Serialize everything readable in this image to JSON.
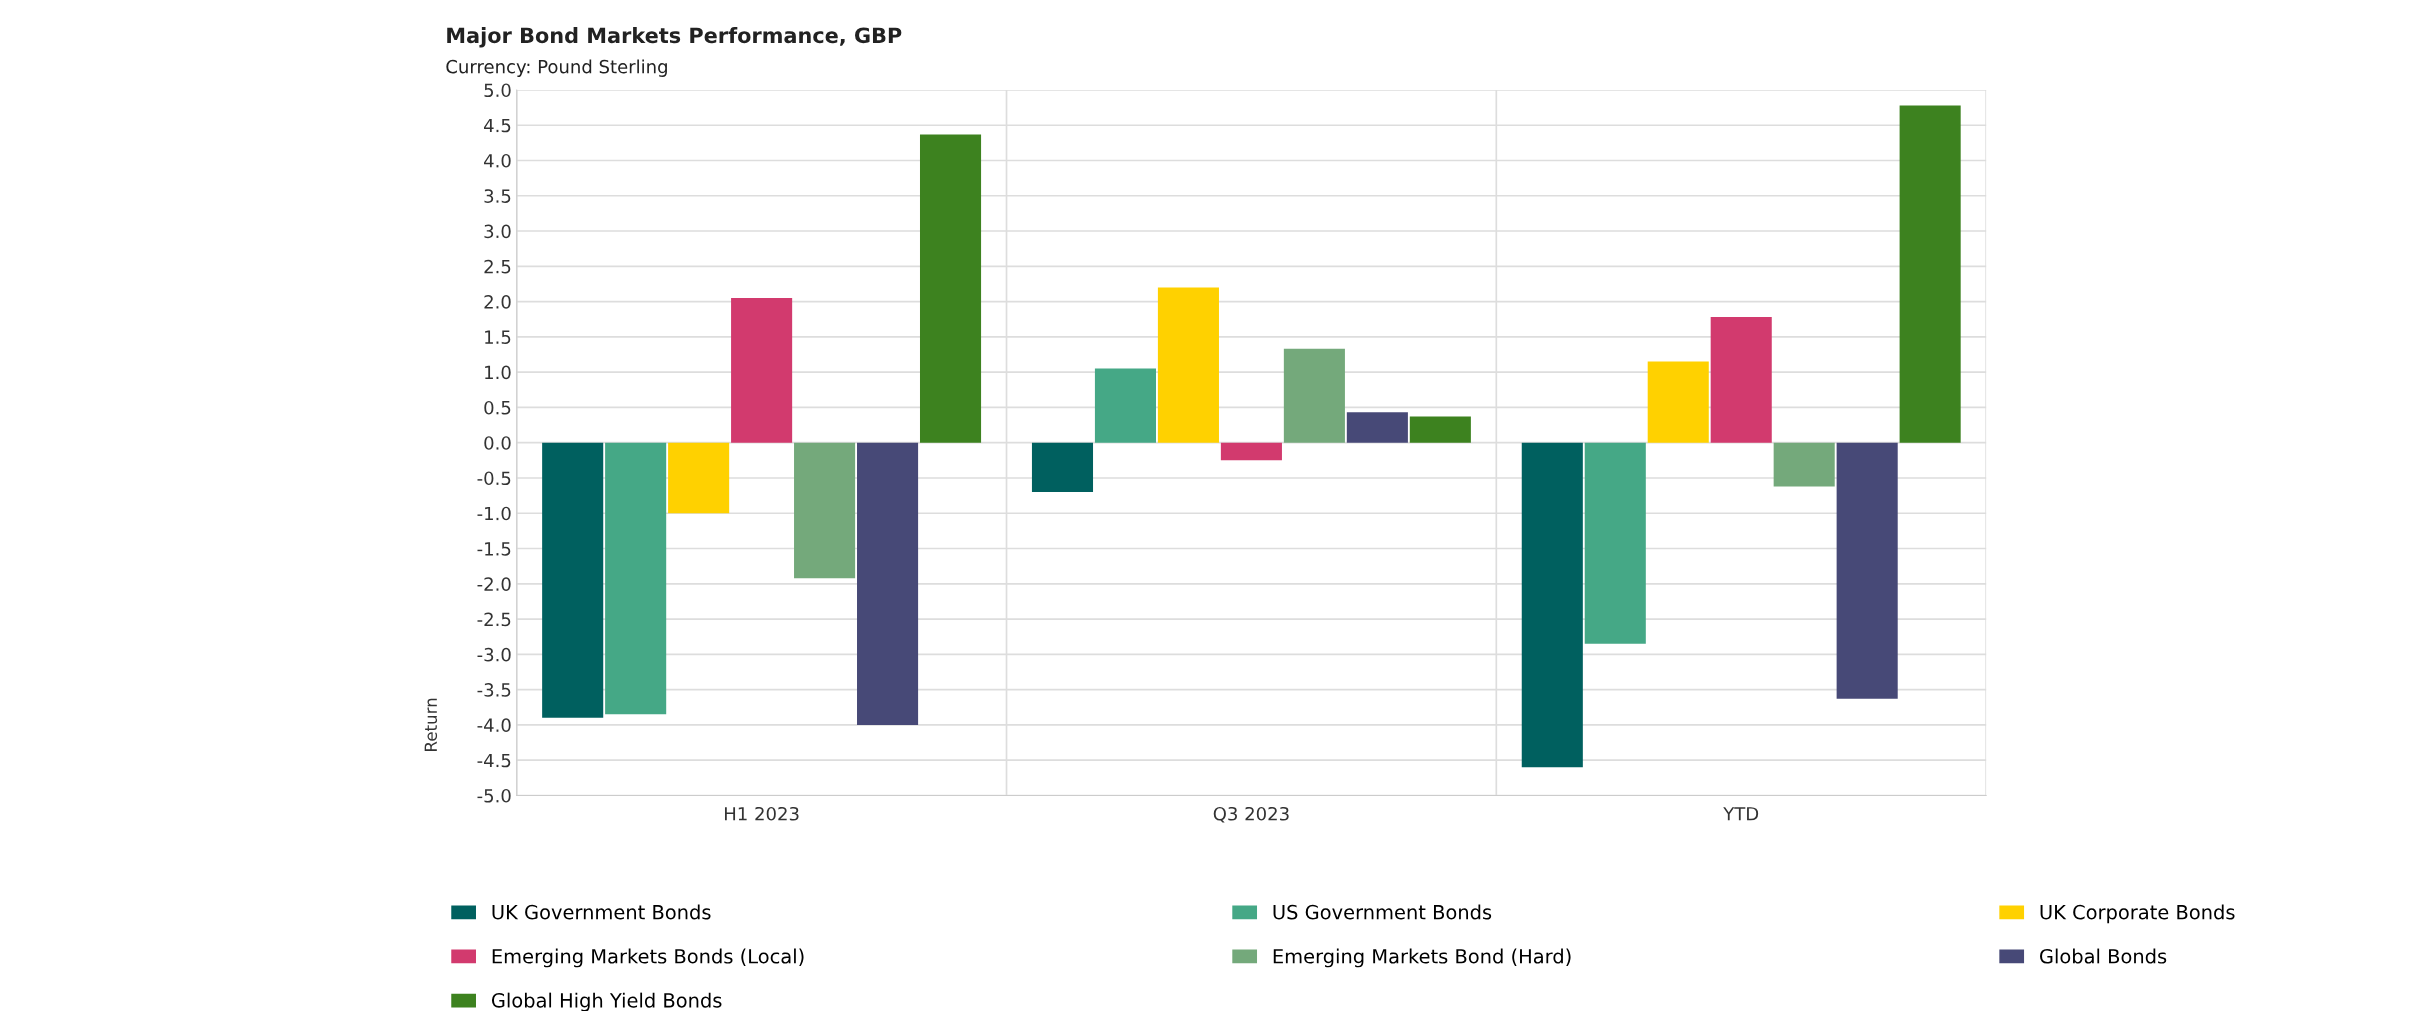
{
  "chart_data": {
    "type": "bar",
    "title": "Major Bond Markets Performance, GBP",
    "subtitle": "Currency: Pound Sterling",
    "ylabel": "Return",
    "categories": [
      "H1 2023",
      "Q3 2023",
      "YTD"
    ],
    "series": [
      {
        "name": "UK Government Bonds",
        "color": "#00605f",
        "values": [
          -3.9,
          -0.7,
          -4.6
        ]
      },
      {
        "name": "US Government Bonds",
        "color": "#45a886",
        "values": [
          -3.85,
          1.05,
          -2.85
        ]
      },
      {
        "name": "UK Corporate Bonds",
        "color": "#ffd100",
        "values": [
          -1.0,
          2.2,
          1.15
        ]
      },
      {
        "name": "Emerging Markets Bonds (Local)",
        "color": "#d23a6e",
        "values": [
          2.05,
          -0.25,
          1.78
        ]
      },
      {
        "name": "Emerging Markets Bond (Hard)",
        "color": "#74a97b",
        "values": [
          -1.92,
          1.33,
          -0.62
        ]
      },
      {
        "name": "Global Bonds",
        "color": "#474977",
        "values": [
          -4.0,
          0.43,
          -3.63
        ]
      },
      {
        "name": "Global High Yield Bonds",
        "color": "#3d821f",
        "values": [
          4.37,
          0.37,
          4.78
        ]
      }
    ],
    "ylim": [
      -5.0,
      5.0
    ],
    "yticks": [
      {
        "value": -5,
        "label": "-5.0"
      },
      {
        "value": -4.5,
        "label": "-4.5"
      },
      {
        "value": -4,
        "label": "-4.0"
      },
      {
        "value": -3.5,
        "label": "-3.5"
      },
      {
        "value": -3,
        "label": "-3.0"
      },
      {
        "value": -2.5,
        "label": "-2.5"
      },
      {
        "value": -2,
        "label": "-2.0"
      },
      {
        "value": -1.5,
        "label": "-1.5"
      },
      {
        "value": -1,
        "label": "-1.0"
      },
      {
        "value": -0.5,
        "label": "-0.5"
      },
      {
        "value": 0,
        "label": "0.0"
      },
      {
        "value": 0.5,
        "label": "0.5"
      },
      {
        "value": 1,
        "label": "1.0"
      },
      {
        "value": 1.5,
        "label": "1.5"
      },
      {
        "value": 2,
        "label": "2.0"
      },
      {
        "value": 2.5,
        "label": "2.5"
      },
      {
        "value": 3,
        "label": "3.0"
      },
      {
        "value": 3.5,
        "label": "3.5"
      },
      {
        "value": 4,
        "label": "4.0"
      },
      {
        "value": 4.5,
        "label": "4.5"
      },
      {
        "value": 5,
        "label": "5.0"
      }
    ],
    "grid": true,
    "legend": "bottom"
  }
}
